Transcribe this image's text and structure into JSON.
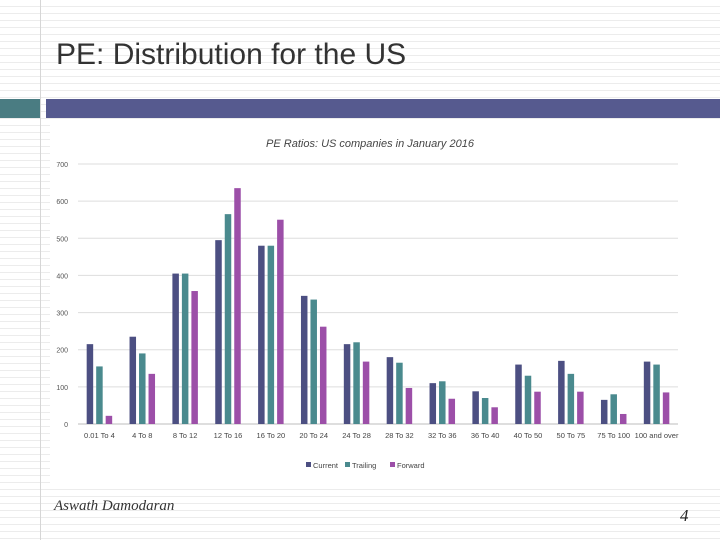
{
  "slide": {
    "title": "PE: Distribution for the US",
    "author": "Aswath Damodaran",
    "page_number": "4"
  },
  "colors": {
    "title_band": "#565a8f",
    "accent_band": "#4a7c82"
  },
  "chart_data": {
    "type": "bar",
    "title": "PE Ratios: US companies in January 2016",
    "xlabel": "",
    "ylabel": "",
    "ylim": [
      0,
      700
    ],
    "yticks": [
      0,
      100,
      200,
      300,
      400,
      500,
      600,
      700
    ],
    "grid": true,
    "legend_position": "bottom",
    "categories": [
      "0.01 To 4",
      "4 To 8",
      "8 To 12",
      "12 To 16",
      "16 To 20",
      "20 To 24",
      "24 To 28",
      "28 To 32",
      "32 To 36",
      "36 To 40",
      "40 To 50",
      "50 To 75",
      "75 To 100",
      "100 and over"
    ],
    "series": [
      {
        "name": "Current",
        "color": "#4c4f82",
        "values": [
          215,
          235,
          405,
          495,
          480,
          345,
          215,
          180,
          110,
          88,
          160,
          170,
          65,
          168
        ]
      },
      {
        "name": "Trailing",
        "color": "#4a8a8e",
        "values": [
          155,
          190,
          405,
          565,
          480,
          335,
          220,
          165,
          115,
          70,
          130,
          135,
          80,
          160
        ]
      },
      {
        "name": "Forward",
        "color": "#9c4fa8",
        "values": [
          22,
          135,
          358,
          635,
          550,
          262,
          168,
          97,
          68,
          45,
          87,
          87,
          27,
          85
        ]
      }
    ]
  }
}
